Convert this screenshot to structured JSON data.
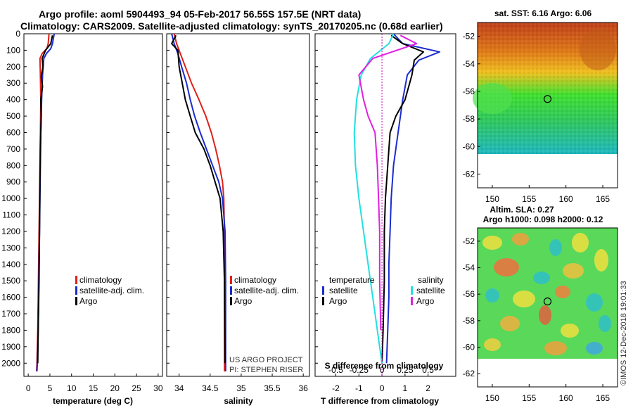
{
  "header": {
    "title_line1": "Argo profile: aoml 5904493_94 05-Feb-2017 56.55S 157.5E (NRT data)",
    "title_line2": "Climatology: CARS2009. Satellite-adjusted climatology: synTS_20170205.nc (0.68d earlier)"
  },
  "credits": {
    "project": "US ARGO PROJECT",
    "pi": "PI: STEPHEN RISER",
    "imos": "©IMOS 12-Dec-2018 19:01:33"
  },
  "colors": {
    "climatology": "#e0201a",
    "satellite": "#1a2bd0",
    "argo": "#000000",
    "sat_salinity": "#22e0e0",
    "argo_salinity": "#e020e0"
  },
  "chart_data": [
    {
      "type": "line",
      "xlabel": "temperature (deg C)",
      "ylabel": "",
      "xlim": [
        -1,
        31
      ],
      "ylim": [
        2080,
        0
      ],
      "xticks": [
        0,
        5,
        10,
        15,
        20,
        25,
        30
      ],
      "yticks": [
        0,
        100,
        200,
        300,
        400,
        500,
        600,
        700,
        800,
        900,
        1000,
        1100,
        1200,
        1300,
        1400,
        1500,
        1600,
        1700,
        1800,
        1900,
        2000
      ],
      "legend": [
        "climatology",
        "satellite-adj. clim.",
        "Argo"
      ],
      "series": [
        {
          "name": "climatology",
          "x": [
            4.8,
            4.6,
            4.3,
            3.2,
            2.7,
            2.8,
            2.9,
            2.8,
            2.7,
            2.6,
            2.5,
            2.4,
            2.3,
            2.2,
            2.1,
            2.0,
            1.9
          ],
          "y": [
            0,
            60,
            90,
            120,
            150,
            250,
            400,
            600,
            800,
            1000,
            1200,
            1400,
            1600,
            1800,
            1900,
            2000,
            2050
          ]
        },
        {
          "name": "satellite-adj. clim.",
          "x": [
            6.0,
            5.6,
            5.2,
            4.2,
            3.6,
            3.3,
            3.1,
            2.9,
            2.8,
            2.7,
            2.6,
            2.5,
            2.4,
            2.3,
            2.2,
            2.1,
            2.0
          ],
          "y": [
            0,
            60,
            90,
            120,
            150,
            250,
            400,
            600,
            800,
            1000,
            1200,
            1400,
            1600,
            1800,
            1900,
            2000,
            2050
          ]
        },
        {
          "name": "Argo",
          "x": [
            5.6,
            5.2,
            4.0,
            3.2,
            3.4,
            3.0,
            3.3,
            2.9,
            3.0,
            2.8,
            2.7,
            2.6,
            2.5,
            2.3,
            2.2
          ],
          "y": [
            10,
            60,
            100,
            150,
            200,
            260,
            320,
            400,
            500,
            700,
            900,
            1200,
            1500,
            1800,
            2000
          ]
        }
      ]
    },
    {
      "type": "line",
      "xlabel": "salinity",
      "ylabel": "",
      "xlim": [
        33.8,
        36.1
      ],
      "ylim": [
        2080,
        0
      ],
      "xticks": [
        34,
        34.5,
        35,
        35.5,
        36
      ],
      "legend": [
        "climatology",
        "satellite-adj. clim.",
        "Argo"
      ],
      "series": [
        {
          "name": "climatology",
          "x": [
            33.92,
            33.96,
            34.02,
            34.1,
            34.2,
            34.32,
            34.43,
            34.52,
            34.59,
            34.65,
            34.7,
            34.72,
            34.73,
            34.73,
            34.73,
            34.73
          ],
          "y": [
            0,
            60,
            120,
            200,
            300,
            400,
            500,
            600,
            700,
            800,
            900,
            1000,
            1200,
            1500,
            1800,
            2050
          ]
        },
        {
          "name": "satellite-adj. clim.",
          "x": [
            33.88,
            33.92,
            33.98,
            34.04,
            34.12,
            34.18,
            34.25,
            34.34,
            34.44,
            34.54,
            34.64,
            34.7,
            34.74,
            34.75,
            34.75
          ],
          "y": [
            0,
            60,
            120,
            200,
            300,
            400,
            500,
            600,
            700,
            800,
            900,
            1000,
            1200,
            1500,
            2050
          ]
        },
        {
          "name": "Argo",
          "x": [
            33.95,
            33.88,
            33.98,
            34.0,
            34.05,
            34.1,
            34.18,
            34.26,
            34.4,
            34.5,
            34.58,
            34.66,
            34.71,
            34.73,
            34.74
          ],
          "y": [
            10,
            60,
            100,
            200,
            300,
            400,
            500,
            600,
            700,
            800,
            900,
            1000,
            1200,
            1500,
            2000
          ]
        }
      ]
    },
    {
      "type": "line",
      "xlabel": "T difference from climatology",
      "ylabel": "",
      "xlim": [
        -2.9,
        3.2
      ],
      "ylim": [
        2080,
        0
      ],
      "xticks": [
        -2,
        -1,
        0,
        1,
        2
      ],
      "secondary_xlabel": "S difference from climatology",
      "secondary_xticks": [
        "-0.5",
        "-0.25",
        "0",
        "0.25",
        "0.5"
      ],
      "legend": {
        "temperature": [
          "satellite",
          "Argo"
        ],
        "salinity": [
          "satellite",
          "Argo"
        ]
      },
      "series": [
        {
          "name": "satellite",
          "group": "temperature",
          "x": [
            0.5,
            0.9,
            2.5,
            1.6,
            1.1,
            0.9,
            0.7,
            0.5,
            0.4,
            0.35,
            0.3,
            0.3,
            0.25,
            0.2
          ],
          "y": [
            0,
            60,
            110,
            160,
            250,
            400,
            600,
            800,
            1000,
            1200,
            1400,
            1600,
            1800,
            2000
          ]
        },
        {
          "name": "Argo",
          "group": "temperature",
          "x": [
            0.4,
            0.9,
            1.8,
            1.4,
            1.3,
            1.0,
            0.6,
            0.35,
            0.25,
            0.15,
            0.1,
            0.1,
            0.05,
            0.0
          ],
          "y": [
            10,
            60,
            110,
            160,
            250,
            400,
            500,
            600,
            800,
            1000,
            1200,
            1500,
            1800,
            2000
          ]
        },
        {
          "name": "satellite",
          "group": "salinity",
          "x": [
            0.5,
            0.3,
            -0.5,
            -0.9,
            -1.1,
            -1.2,
            -1.15,
            -1.0,
            -0.8,
            -0.6,
            -0.4,
            -0.2,
            -0.1,
            0.0
          ],
          "y": [
            0,
            60,
            150,
            250,
            400,
            600,
            800,
            1000,
            1200,
            1400,
            1600,
            1800,
            1900,
            2000
          ]
        },
        {
          "name": "Argo",
          "group": "salinity",
          "x": [
            0.8,
            1.5,
            -0.4,
            -1.0,
            -0.8,
            -0.6,
            -0.3,
            -0.2,
            -0.15,
            -0.1,
            -0.1,
            -0.05
          ],
          "y": [
            10,
            60,
            150,
            250,
            400,
            500,
            600,
            800,
            1000,
            1200,
            1500,
            1800
          ]
        }
      ]
    },
    {
      "type": "heatmap",
      "title": "sat. SST: 6.16 Argo: 6.06",
      "xlim": [
        148,
        167
      ],
      "ylim": [
        -63,
        -51
      ],
      "xticks": [
        150,
        155,
        160,
        165
      ],
      "yticks": [
        -52,
        -54,
        -56,
        -58,
        -60,
        -62
      ],
      "marker": {
        "x": 157.5,
        "y": -56.55
      },
      "data_extent_lat_min": -60
    },
    {
      "type": "heatmap",
      "title": "Altim. SLA: 0.27",
      "subtitle": "Argo h1000: 0.098 h2000: 0.12",
      "xlim": [
        148,
        167
      ],
      "ylim": [
        -63,
        -51
      ],
      "xticks": [
        150,
        155,
        160,
        165
      ],
      "yticks": [
        -52,
        -54,
        -56,
        -58,
        -60,
        -62
      ],
      "marker": {
        "x": 157.5,
        "y": -56.55
      },
      "data_extent_lat_min": -60
    }
  ]
}
